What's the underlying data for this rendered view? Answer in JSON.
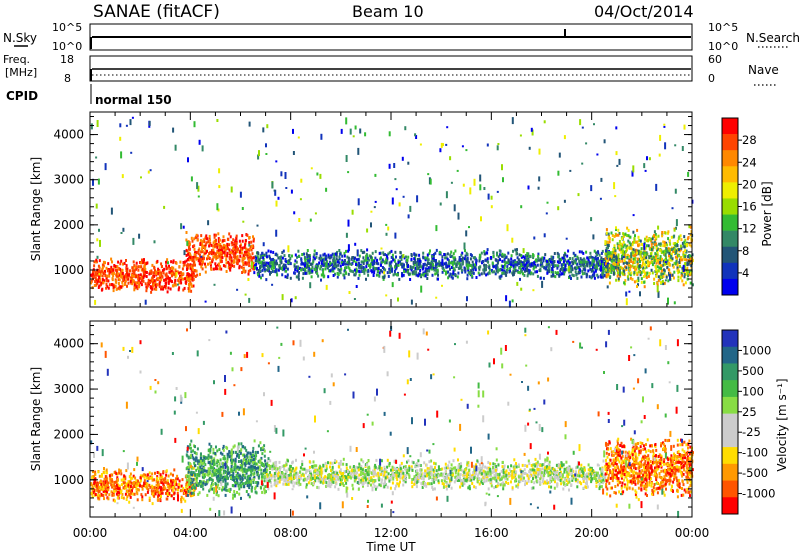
{
  "header": {
    "station": "SANAE (fitACF)",
    "beam": "Beam 10",
    "date": "04/Oct/2014"
  },
  "strips": {
    "nsky_label": "N.Sky",
    "nsky_ticks": [
      "10^5",
      "10^0"
    ],
    "nsearch_label": "N.Search",
    "nsearch_ticks": [
      "10^5",
      "10^0"
    ],
    "freq_label_1": "Freq.",
    "freq_label_2": "[MHz]",
    "freq_ticks": [
      "18",
      "8"
    ],
    "nave_label": "Nave",
    "nave_ticks": [
      "60",
      "0"
    ],
    "cpid_label": "CPID",
    "cpid_value": "normal 150"
  },
  "colorbars": {
    "power": {
      "label": "Power [dB]",
      "ticks": [
        "28",
        "24",
        "20",
        "16",
        "12",
        "8",
        "4"
      ],
      "colors": [
        "#ff0000",
        "#ff4400",
        "#ff8800",
        "#ffbb00",
        "#eeee00",
        "#99dd00",
        "#33bb33",
        "#338866",
        "#225577",
        "#1133bb",
        "#0000ee"
      ]
    },
    "velocity": {
      "label": "Velocity [m s⁻¹]",
      "ticks": [
        "1000",
        "500",
        "100",
        "25",
        "-25",
        "-100",
        "-500",
        "-1000"
      ],
      "colors": [
        "#2233bb",
        "#226688",
        "#339966",
        "#44bb44",
        "#88dd44",
        "#cccccc",
        "#cccccc",
        "#ffdd00",
        "#ff9900",
        "#ff5500",
        "#ff0000"
      ]
    }
  },
  "chart_data": [
    {
      "type": "heatmap",
      "name": "power-panel",
      "xlabel": "Time UT",
      "ylabel": "Slant Range [km]",
      "xticks": [
        "00:00",
        "04:00",
        "08:00",
        "12:00",
        "16:00",
        "20:00",
        "00:00"
      ],
      "yticks": [
        "1000",
        "2000",
        "3000",
        "4000"
      ],
      "xlim_hours": [
        0,
        24
      ],
      "ylim_km": [
        180,
        4500
      ],
      "echo_regions": [
        {
          "t0": 0.0,
          "t1": 4.2,
          "r0": 500,
          "r1": 1300,
          "level": "high"
        },
        {
          "t0": 3.8,
          "t1": 6.5,
          "r0": 900,
          "r1": 1900,
          "level": "high"
        },
        {
          "t0": 6.5,
          "t1": 21.0,
          "r0": 800,
          "r1": 1500,
          "level": "low"
        },
        {
          "t0": 20.5,
          "t1": 24.0,
          "r0": 600,
          "r1": 2000,
          "level": "medium"
        }
      ]
    },
    {
      "type": "heatmap",
      "name": "velocity-panel",
      "xlabel": "Time UT",
      "ylabel": "Slant Range [km]",
      "xticks": [
        "00:00",
        "04:00",
        "08:00",
        "12:00",
        "16:00",
        "20:00",
        "00:00"
      ],
      "yticks": [
        "1000",
        "2000",
        "3000",
        "4000"
      ],
      "xlim_hours": [
        0,
        24
      ],
      "ylim_km": [
        180,
        4500
      ],
      "echo_regions": [
        {
          "t0": 0.0,
          "t1": 4.2,
          "r0": 500,
          "r1": 1300,
          "level": "negative"
        },
        {
          "t0": 3.8,
          "t1": 7.0,
          "r0": 600,
          "r1": 1900,
          "level": "positive"
        },
        {
          "t0": 7.0,
          "t1": 20.5,
          "r0": 800,
          "r1": 1500,
          "level": "near-zero"
        },
        {
          "t0": 20.5,
          "t1": 24.0,
          "r0": 600,
          "r1": 2000,
          "level": "negative"
        }
      ]
    }
  ]
}
